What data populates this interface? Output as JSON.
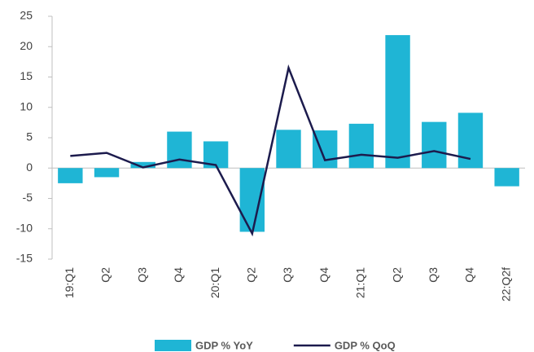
{
  "chart_data": {
    "type": "bar",
    "categories": [
      "19:Q1",
      "Q2",
      "Q3",
      "Q4",
      "20:Q1",
      "Q2",
      "Q3",
      "Q4",
      "21:Q1",
      "Q2",
      "Q3",
      "Q4",
      "22:Q2f"
    ],
    "series": [
      {
        "name": "GDP % YoY",
        "type": "bar",
        "color": "#1fb5d5",
        "values": [
          -2.5,
          -1.5,
          1.0,
          6.0,
          4.4,
          -10.5,
          6.3,
          6.2,
          7.3,
          21.9,
          7.6,
          9.1,
          -3.0
        ]
      },
      {
        "name": "GDP % QoQ",
        "type": "line",
        "color": "#1c1b4d",
        "values": [
          2.0,
          2.5,
          0.1,
          1.4,
          0.5,
          -10.8,
          16.5,
          1.3,
          2.2,
          1.7,
          2.8,
          1.5,
          null
        ]
      }
    ],
    "ylim": [
      -15,
      25
    ],
    "yticks": [
      -15,
      -10,
      -5,
      0,
      5,
      10,
      15,
      20,
      25
    ],
    "legend": "bottom"
  }
}
